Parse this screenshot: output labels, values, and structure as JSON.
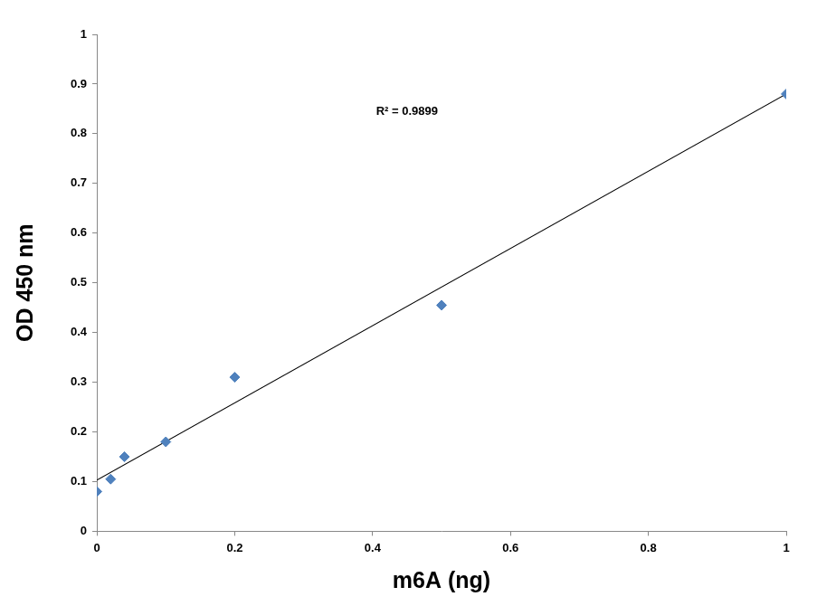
{
  "chart_data": {
    "type": "scatter",
    "x_label": "m6A (ng)",
    "y_label": "OD 450 nm",
    "annotations": [
      {
        "text": "R² = 0.9899"
      }
    ],
    "series": [
      {
        "type": "scatter",
        "color": "#4f81bd",
        "marker": "diamond",
        "x": [
          0,
          0.02,
          0.04,
          0.1,
          0.2,
          0.5,
          1
        ],
        "values": [
          0.08,
          0.105,
          0.15,
          0.18,
          0.31,
          0.455,
          0.88
        ]
      },
      {
        "type": "line",
        "color": "#000000",
        "line_style": "solid",
        "x": [
          0,
          1
        ],
        "values": [
          0.103,
          0.88
        ]
      }
    ],
    "xlim": [
      0,
      1
    ],
    "xticks": [
      0,
      0.2,
      0.4,
      0.6,
      0.8,
      1
    ],
    "ylim": [
      0,
      1
    ],
    "yticks": [
      0,
      0.1,
      0.2,
      0.3,
      0.4,
      0.5,
      0.6,
      0.7,
      0.8,
      0.9,
      1
    ],
    "grid": false
  }
}
